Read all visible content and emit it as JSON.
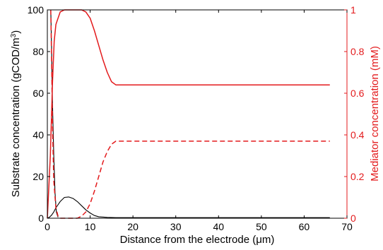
{
  "chart_data": {
    "type": "line",
    "xlabel_prefix": "Distance from the electrode (",
    "xlabel_unit_symbol": "μ",
    "xlabel_suffix": "m)",
    "ylabel_left_prefix": "Substrate concentration (gCOD/m",
    "ylabel_left_sup": "3",
    "ylabel_left_suffix": ")",
    "ylabel_right": "Mediator concentration (mM)",
    "xlim": [
      0,
      70
    ],
    "ylim_left": [
      0,
      100
    ],
    "ylim_right": [
      0,
      1
    ],
    "xticks": [
      "0",
      "10",
      "20",
      "30",
      "40",
      "50",
      "60",
      "70"
    ],
    "yticks_left": [
      "0",
      "20",
      "40",
      "60",
      "80",
      "100"
    ],
    "yticks_right": [
      "0",
      "0.2",
      "0.4",
      "0.6",
      "0.8",
      "1"
    ],
    "grid": false,
    "colors": {
      "left_axis": "#000000",
      "right_axis": "#e31a1c"
    },
    "series": [
      {
        "axis": "left",
        "color": "#000000",
        "style": "solid",
        "x": [
          0,
          0.5,
          1,
          1.5,
          2,
          3,
          4,
          5,
          6,
          7,
          8,
          9,
          10,
          11,
          12,
          14,
          16,
          20,
          30,
          40,
          50,
          60,
          66
        ],
        "y": [
          0,
          0.5,
          1.5,
          3,
          5,
          8,
          10,
          10.2,
          9.5,
          8,
          6,
          4,
          2.5,
          1.3,
          0.7,
          0.4,
          0.3,
          0.3,
          0.3,
          0.3,
          0.3,
          0.3,
          0.3
        ]
      },
      {
        "axis": "left",
        "color": "#000000",
        "style": "solid",
        "x": [
          0.8,
          1.0,
          1.2,
          1.5,
          1.8,
          2.1,
          2.5
        ],
        "y": [
          100,
          80,
          55,
          30,
          12,
          3,
          0.5
        ]
      },
      {
        "axis": "right",
        "color": "#e31a1c",
        "style": "solid",
        "x": [
          0,
          0.7,
          1.2,
          1.6,
          2,
          2.5,
          3,
          4,
          5,
          8,
          9,
          10,
          11,
          12,
          13,
          14,
          15,
          16,
          20,
          30,
          40,
          50,
          60,
          66
        ],
        "y": [
          0,
          0.3,
          0.65,
          0.85,
          0.93,
          0.96,
          0.99,
          1.0,
          1.0,
          1.0,
          0.99,
          0.96,
          0.9,
          0.83,
          0.76,
          0.7,
          0.655,
          0.64,
          0.64,
          0.64,
          0.64,
          0.64,
          0.64,
          0.64
        ]
      },
      {
        "axis": "right",
        "color": "#e31a1c",
        "style": "dashed",
        "x": [
          0.8,
          1.0,
          1.2,
          1.5,
          2,
          2.5,
          3,
          5,
          7,
          8,
          9,
          10,
          11,
          12,
          13,
          14,
          15,
          16,
          20,
          30,
          40,
          50,
          60,
          66
        ],
        "y": [
          1.0,
          0.75,
          0.45,
          0.18,
          0.05,
          0.01,
          0.0,
          0.0,
          0.0,
          0.01,
          0.03,
          0.07,
          0.13,
          0.2,
          0.27,
          0.32,
          0.355,
          0.37,
          0.37,
          0.37,
          0.37,
          0.37,
          0.37,
          0.37
        ]
      }
    ]
  }
}
